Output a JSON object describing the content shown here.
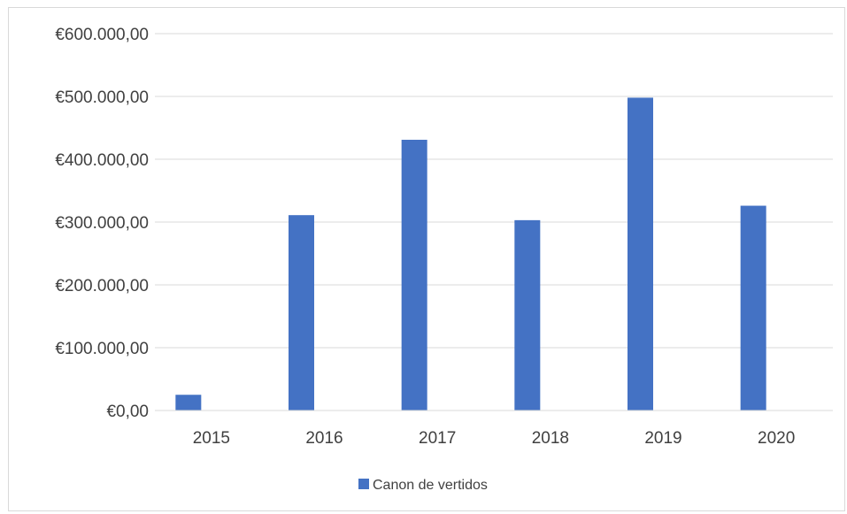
{
  "chart_data": {
    "type": "bar",
    "title": "",
    "xlabel": "",
    "ylabel": "",
    "categories": [
      "2015",
      "2016",
      "2017",
      "2018",
      "2019",
      "2020"
    ],
    "series": [
      {
        "name": "Canon de vertidos",
        "values": [
          25000,
          311000,
          431000,
          303000,
          498000,
          326000
        ],
        "color": "#4472C4"
      }
    ],
    "ylim": [
      0,
      600000
    ],
    "yticks": [
      0,
      100000,
      200000,
      300000,
      400000,
      500000,
      600000
    ],
    "ytick_labels": [
      "€0,00",
      "€100.000,00",
      "€200.000,00",
      "€300.000,00",
      "€400.000,00",
      "€500.000,00",
      "€600.000,00"
    ],
    "grid": true,
    "gridline_color": "#d9d9d9",
    "legend_position": "bottom"
  }
}
